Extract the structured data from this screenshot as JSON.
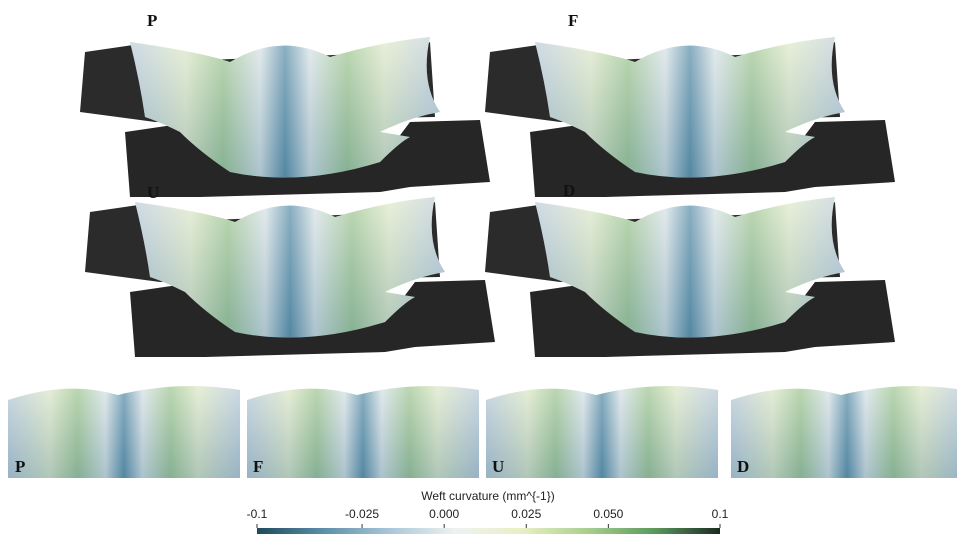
{
  "panels": [
    {
      "label": "P"
    },
    {
      "label": "F"
    },
    {
      "label": "U"
    },
    {
      "label": "D"
    }
  ],
  "closeups": [
    {
      "label": "P"
    },
    {
      "label": "F"
    },
    {
      "label": "U"
    },
    {
      "label": "D"
    }
  ],
  "colorbar": {
    "title": "Weft curvature (mm^{-1})",
    "lim": [
      -0.057,
      0.084
    ],
    "ticks": [
      {
        "value": -0.057,
        "label": "-0.1"
      },
      -0.025,
      {
        "value": 0,
        "label": "0.000"
      },
      0.025,
      {
        "value": 0.05,
        "label": "0.050"
      },
      {
        "value": 0.084,
        "label": "0.1"
      }
    ],
    "colors": [
      "#1f4a5c",
      "#5b8fa8",
      "#a9c6d8",
      "#eef2f0",
      "#e9efc4",
      "#a9cf8f",
      "#5a9a5e",
      "#1c2a22"
    ]
  }
}
